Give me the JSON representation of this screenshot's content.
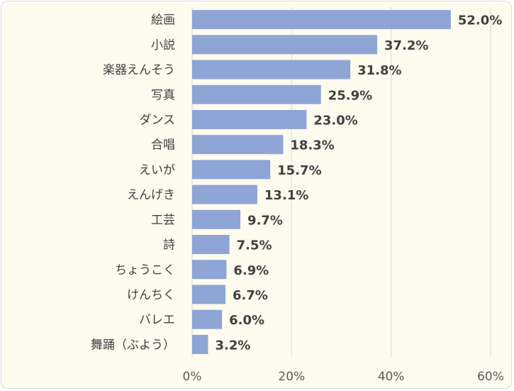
{
  "chart_data": {
    "type": "bar",
    "orientation": "horizontal",
    "categories": [
      "絵画",
      "小説",
      "楽器えんそう",
      "写真",
      "ダンス",
      "合唱",
      "えいが",
      "えんげき",
      "工芸",
      "詩",
      "ちょうこく",
      "けんちく",
      "バレエ",
      "舞踊（ぶよう）"
    ],
    "values": [
      52.0,
      37.2,
      31.8,
      25.9,
      23.0,
      18.3,
      15.7,
      13.1,
      9.7,
      7.5,
      6.9,
      6.7,
      6.0,
      3.2
    ],
    "value_labels": [
      "52.0%",
      "37.2%",
      "31.8%",
      "25.9%",
      "23.0%",
      "18.3%",
      "15.7%",
      "13.1%",
      "9.7%",
      "7.5%",
      "6.9%",
      "6.7%",
      "6.0%",
      "3.2%"
    ],
    "xlim": [
      0,
      60
    ],
    "xticks": [
      0,
      20,
      40,
      60
    ],
    "xtick_labels": [
      "0%",
      "20%",
      "40%",
      "60%"
    ],
    "grid": "vertical",
    "bar_color": "#8ea5d5",
    "legend": "none"
  }
}
